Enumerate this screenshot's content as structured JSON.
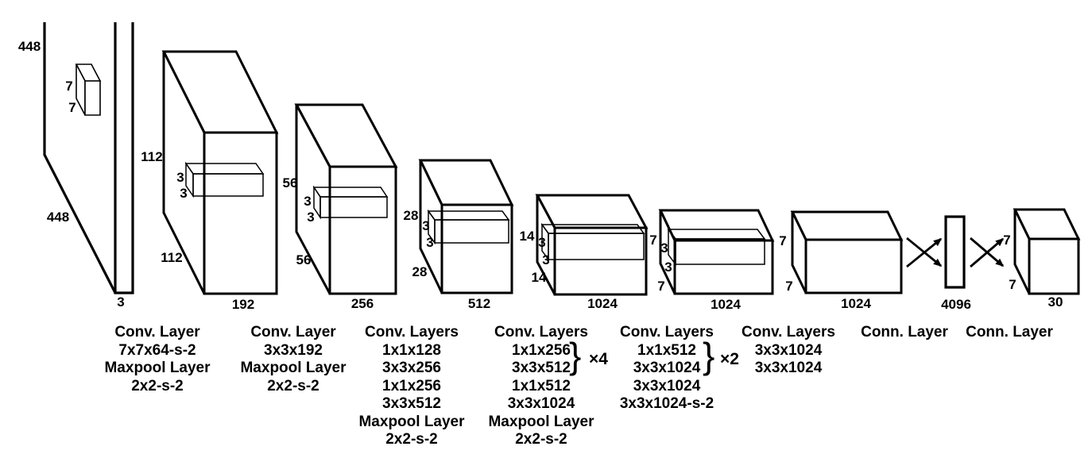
{
  "diagram": {
    "title": "YOLO detection network architecture",
    "colors": {
      "stroke": "#000000",
      "background": "#ffffff"
    },
    "input": {
      "height_label": "448",
      "width_label": "448",
      "depth_label": "3",
      "kernel_labels": [
        "7",
        "7"
      ]
    },
    "volumes": [
      {
        "name": "conv1-output",
        "side_label": "112",
        "bottom_side_label": "112",
        "depth_label": "192",
        "kernel_labels": [
          "3",
          "3"
        ]
      },
      {
        "name": "conv2-output",
        "side_label": "56",
        "bottom_side_label": "56",
        "depth_label": "256",
        "kernel_labels": [
          "3",
          "3"
        ]
      },
      {
        "name": "conv3-output",
        "side_label": "28",
        "bottom_side_label": "28",
        "depth_label": "512",
        "kernel_labels": [
          "3",
          "3"
        ]
      },
      {
        "name": "conv4-output",
        "side_label": "14",
        "bottom_side_label": "14",
        "depth_label": "1024",
        "kernel_labels": [
          "3",
          "3"
        ]
      },
      {
        "name": "conv5-output",
        "side_label": "7",
        "bottom_side_label": "7",
        "depth_label": "1024",
        "kernel_labels": [
          "3",
          "3"
        ]
      },
      {
        "name": "conv6-output",
        "side_label": "7",
        "bottom_side_label": "7",
        "depth_label": "1024",
        "kernel_labels": []
      },
      {
        "name": "fc1",
        "depth_label": "4096"
      },
      {
        "name": "output",
        "side_label": "7",
        "bottom_side_label": "7",
        "depth_label": "30"
      }
    ],
    "layer_captions": [
      {
        "lines": [
          "Conv. Layer",
          "7x7x64-s-2",
          "Maxpool Layer",
          "2x2-s-2"
        ]
      },
      {
        "lines": [
          "Conv. Layer",
          "3x3x192",
          "Maxpool Layer",
          "2x2-s-2"
        ]
      },
      {
        "lines": [
          "Conv. Layers",
          "1x1x128",
          "3x3x256",
          "1x1x256",
          "3x3x512",
          "Maxpool Layer",
          "2x2-s-2"
        ]
      },
      {
        "lines": [
          "Conv. Layers",
          "1x1x256",
          "3x3x512",
          "1x1x512",
          "3x3x1024",
          "Maxpool Layer",
          "2x2-s-2"
        ],
        "repeat": {
          "label": "×4"
        }
      },
      {
        "lines": [
          "Conv. Layers",
          "1x1x512",
          "3x3x1024",
          "3x3x1024",
          "3x3x1024-s-2"
        ],
        "repeat": {
          "label": "×2"
        }
      },
      {
        "lines": [
          "Conv. Layers",
          "3x3x1024",
          "3x3x1024"
        ]
      },
      {
        "lines": [
          "Conn. Layer"
        ]
      },
      {
        "lines": [
          "Conn. Layer"
        ]
      }
    ]
  }
}
